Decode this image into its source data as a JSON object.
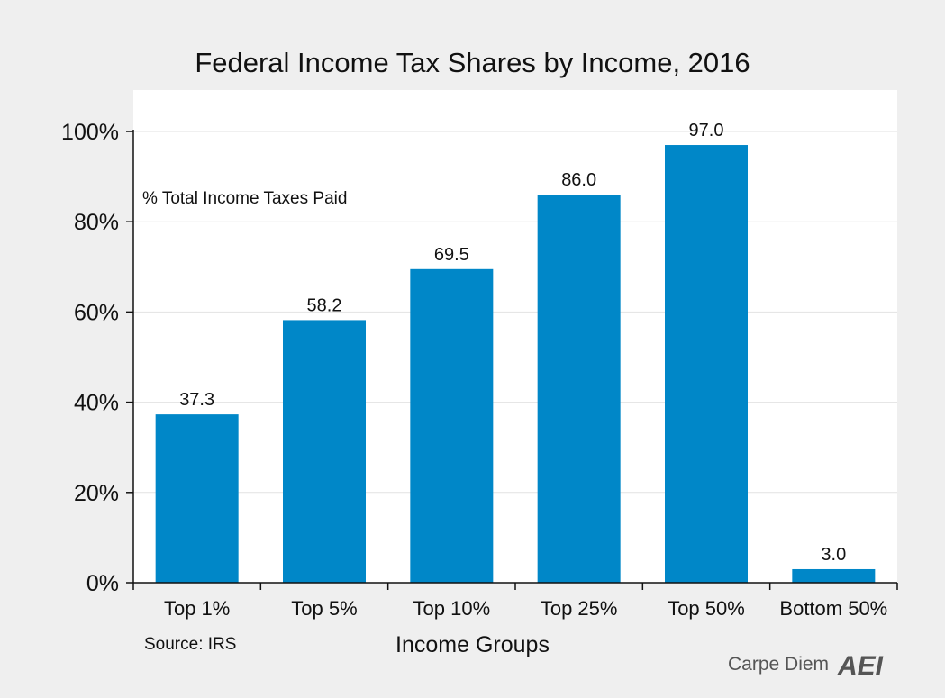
{
  "chart_data": {
    "type": "bar",
    "title": "Federal Income Tax Shares by Income, 2016",
    "annotation": "% Total Income Taxes Paid",
    "categories": [
      "Top 1%",
      "Top 5%",
      "Top 10%",
      "Top 25%",
      "Top 50%",
      "Bottom 50%"
    ],
    "values": [
      37.3,
      58.2,
      69.5,
      86.0,
      97.0,
      3.0
    ],
    "data_labels": [
      "37.3",
      "58.2",
      "69.5",
      "86.0",
      "97.0",
      "3.0"
    ],
    "xlabel": "Income Groups",
    "ylabel": "",
    "ylim": [
      0,
      100
    ],
    "yticks": [
      0,
      20,
      40,
      60,
      80,
      100
    ],
    "ytick_labels": [
      "0%",
      "20%",
      "40%",
      "60%",
      "80%",
      "100%"
    ],
    "grid": true,
    "bar_color": "#0087c8"
  },
  "footer": {
    "source": "Source: IRS",
    "brand": "Carpe Diem",
    "logo": "AEI"
  }
}
